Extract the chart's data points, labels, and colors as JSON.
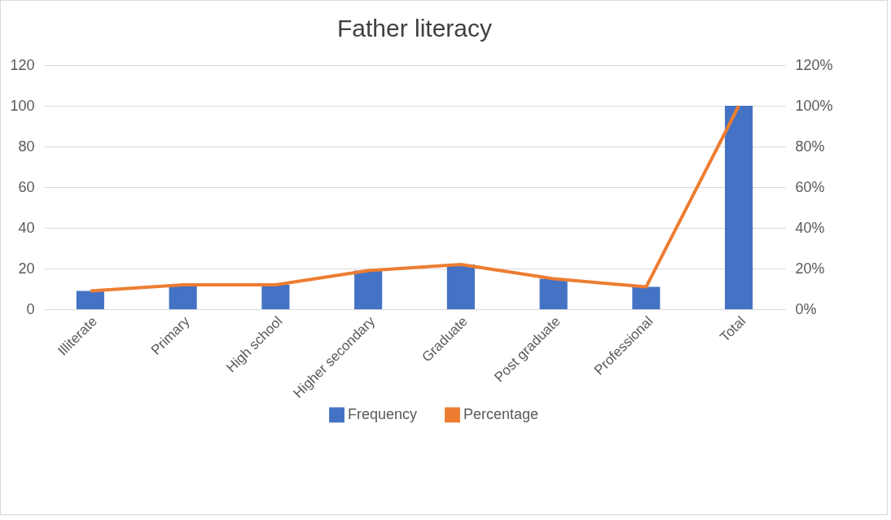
{
  "chart_data": {
    "type": "bar",
    "title": "Father literacy",
    "categories": [
      "Illiterate",
      "Primary",
      "High school",
      "Higher secondary",
      "Graduate",
      "Post graduate",
      "Professional",
      "Total"
    ],
    "series": [
      {
        "name": "Frequency",
        "color": "#4472c4",
        "values": [
          9,
          12,
          12,
          19,
          22,
          15,
          11,
          100
        ]
      },
      {
        "name": "Percentage",
        "type": "line",
        "axis": "y2",
        "color": "#ed7d31",
        "values": [
          9,
          12,
          12,
          19,
          22,
          15,
          11,
          100
        ]
      }
    ],
    "ylim": [
      0,
      120
    ],
    "yticks": [
      0,
      20,
      40,
      60,
      80,
      100,
      120
    ],
    "y2lim": [
      0,
      120
    ],
    "y2ticks": [
      {
        "value": 0,
        "label": "0%"
      },
      {
        "value": 20,
        "label": "20%"
      },
      {
        "value": 40,
        "label": "40%"
      },
      {
        "value": 60,
        "label": "60%"
      },
      {
        "value": 80,
        "label": "80%"
      },
      {
        "value": 100,
        "label": "100%"
      },
      {
        "value": 120,
        "label": "120%"
      }
    ],
    "grid": "y",
    "legend": "bottom"
  }
}
